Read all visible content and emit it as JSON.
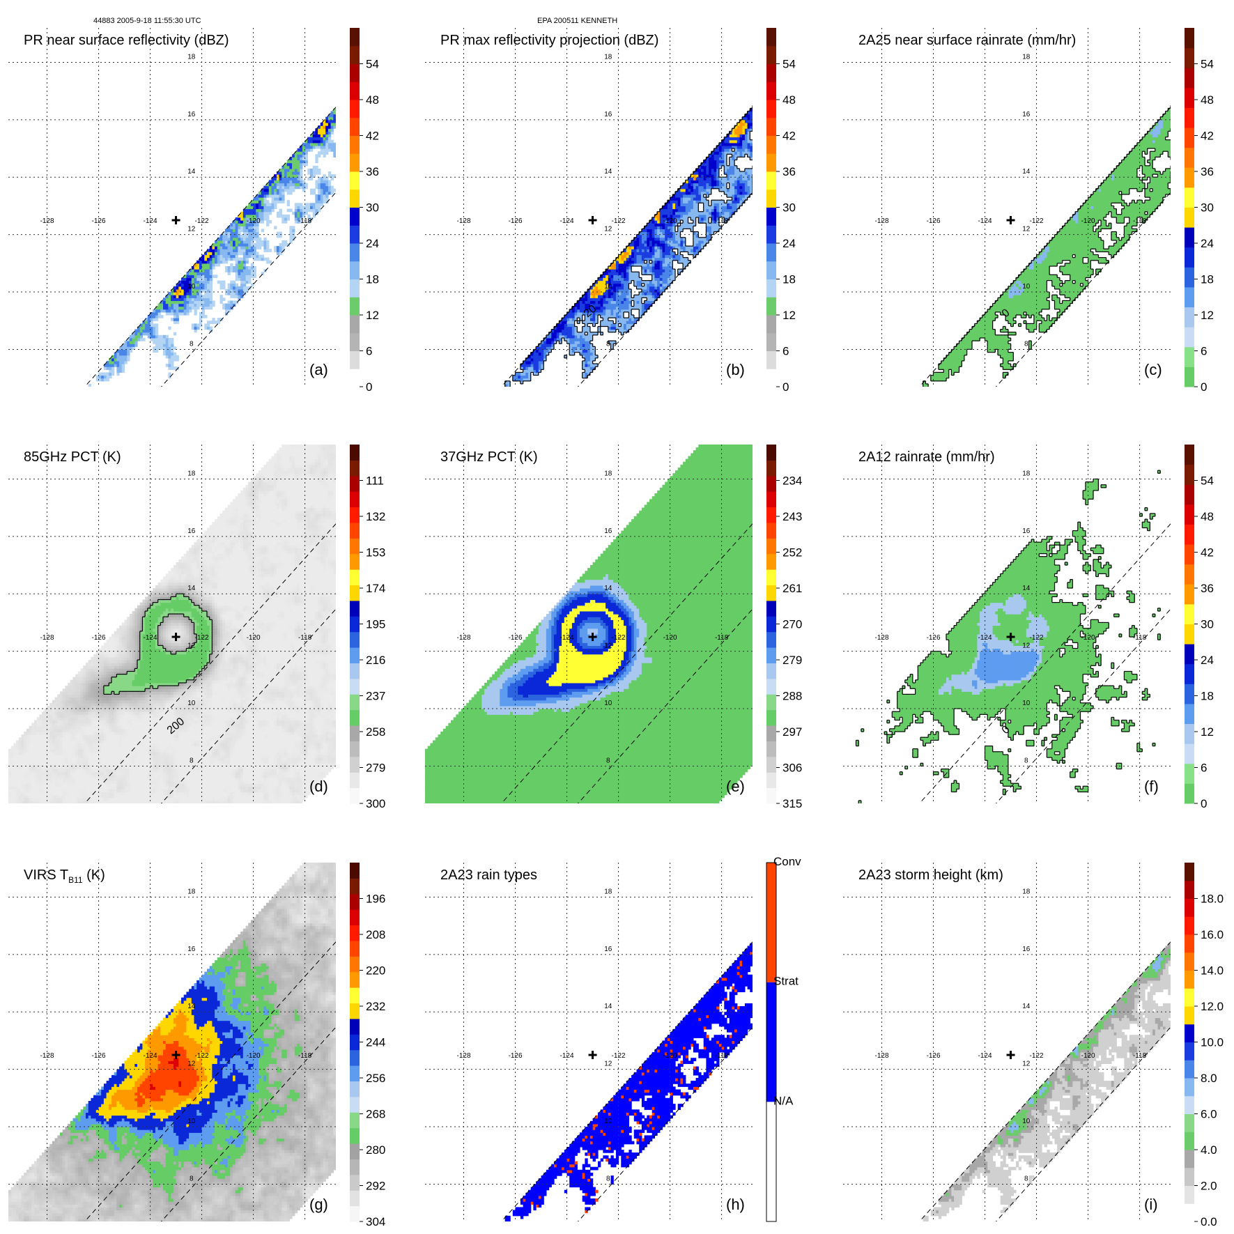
{
  "header": {
    "left": "44883 2005-9-18 11:55:30 UTC",
    "center": "EPA 200511 KENNETH"
  },
  "chart_data": [
    {
      "id": "a",
      "type": "heatmap",
      "title": "PR near surface reflectivity (dBZ)",
      "panel_label": "(a)",
      "colorbar": {
        "kind": "dbz",
        "ticks": [
          "0",
          "6",
          "12",
          "18",
          "24",
          "30",
          "36",
          "42",
          "48",
          "54"
        ]
      },
      "swath": "pr",
      "field": "pr_reflectivity",
      "contours": []
    },
    {
      "id": "b",
      "type": "heatmap",
      "title": "PR max reflectivity projection (dBZ)",
      "panel_label": "(b)",
      "colorbar": {
        "kind": "dbz",
        "ticks": [
          "0",
          "6",
          "12",
          "18",
          "24",
          "30",
          "36",
          "42",
          "48",
          "54"
        ]
      },
      "swath": "pr",
      "field": "pr_maxref",
      "contours": [
        "20"
      ]
    },
    {
      "id": "c",
      "type": "heatmap",
      "title": "2A25 near surface rainrate (mm/hr)",
      "panel_label": "(c)",
      "colorbar": {
        "kind": "rain",
        "ticks": [
          "0",
          "6",
          "12",
          "18",
          "24",
          "30",
          "36",
          "42",
          "48",
          "54"
        ]
      },
      "swath": "pr",
      "field": "pr_rain",
      "contours": [
        "0"
      ]
    },
    {
      "id": "d",
      "type": "heatmap",
      "title": "85GHz PCT (K)",
      "panel_label": "(d)",
      "colorbar": {
        "kind": "pct",
        "ticks": [
          "300",
          "279",
          "258",
          "237",
          "216",
          "195",
          "174",
          "153",
          "132",
          "111"
        ]
      },
      "swath": "tmi",
      "field": "pct85",
      "contours": [
        "200"
      ]
    },
    {
      "id": "e",
      "type": "heatmap",
      "title": "37GHz PCT (K)",
      "panel_label": "(e)",
      "colorbar": {
        "kind": "pct",
        "ticks": [
          "315",
          "306",
          "297",
          "288",
          "279",
          "270",
          "261",
          "252",
          "243",
          "234"
        ]
      },
      "swath": "tmi",
      "field": "pct37",
      "contours": []
    },
    {
      "id": "f",
      "type": "heatmap",
      "title": "2A12 rainrate (mm/hr)",
      "panel_label": "(f)",
      "colorbar": {
        "kind": "rain",
        "ticks": [
          "0",
          "6",
          "12",
          "18",
          "24",
          "30",
          "36",
          "42",
          "48",
          "54"
        ]
      },
      "swath": "tmi",
      "field": "rain12",
      "contours": [
        "0"
      ]
    },
    {
      "id": "g",
      "type": "heatmap",
      "title": "VIRS T",
      "title_sub": "B11",
      "title_suffix": " (K)",
      "panel_label": "(g)",
      "colorbar": {
        "kind": "virs",
        "ticks": [
          "304",
          "292",
          "280",
          "268",
          "256",
          "244",
          "232",
          "220",
          "208",
          "196"
        ]
      },
      "swath": "virs",
      "field": "virs",
      "contours": []
    },
    {
      "id": "h",
      "type": "heatmap",
      "title": "2A23 rain types",
      "panel_label": "(h)",
      "colorbar": {
        "kind": "raintype",
        "ticks": [
          "N/A",
          "Strat",
          "Conv"
        ]
      },
      "swath": "pr",
      "field": "raintype",
      "contours": []
    },
    {
      "id": "i",
      "type": "heatmap",
      "title": "2A23 storm height (km)",
      "panel_label": "(i)",
      "colorbar": {
        "kind": "height",
        "ticks": [
          "0.0",
          "2.0",
          "4.0",
          "6.0",
          "8.0",
          "10.0",
          "12.0",
          "14.0",
          "16.0",
          "18.0"
        ]
      },
      "swath": "pr",
      "field": "height",
      "contours": []
    }
  ],
  "map": {
    "lon_range": [
      -129.5,
      -116.8
    ],
    "lat_range": [
      6.7,
      19.2
    ],
    "lon_ticks": [
      -128,
      -126,
      -124,
      -122,
      -120,
      -118
    ],
    "lon_labels": [
      "-128",
      "-126",
      "-124",
      "-122",
      "-120",
      "-118"
    ],
    "lat_ticks": [
      8,
      10,
      12,
      14,
      16,
      18
    ],
    "lat_labels": [
      "8",
      "10",
      "12",
      "14",
      "16",
      "18"
    ],
    "storm_center": {
      "lon": -123.0,
      "lat": 12.5
    },
    "grid": true
  }
}
